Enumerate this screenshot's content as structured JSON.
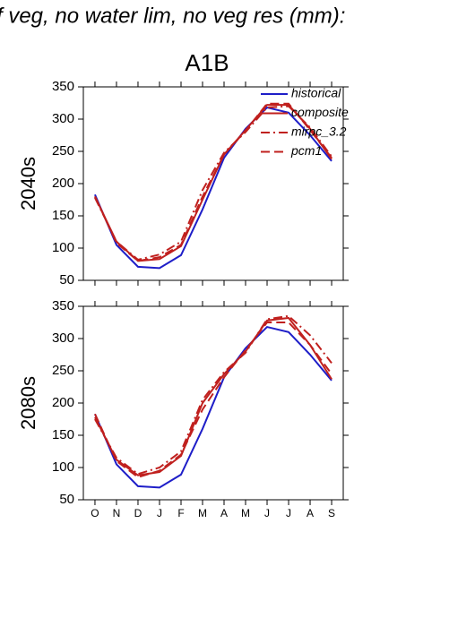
{
  "header": {
    "title": "f veg, no water lim, no veg res (mm):"
  },
  "chart_data": [
    {
      "type": "line",
      "title": "A1B",
      "ylabel": "2040s",
      "legend": "upper right",
      "categories": [
        null,
        null,
        null,
        null,
        null,
        null,
        null,
        null,
        null,
        null,
        null,
        null
      ],
      "ylim": [
        50,
        350
      ],
      "yticks": [
        50,
        100,
        150,
        200,
        250,
        300,
        350
      ],
      "series": [
        {
          "name": "historical",
          "color": "#1e1ec8",
          "dash": "solid",
          "values": [
            183,
            105,
            71,
            69,
            89,
            160,
            240,
            285,
            318,
            310,
            275,
            235
          ]
        },
        {
          "name": "composite",
          "color": "#c0201e",
          "dash": "solid",
          "values": [
            180,
            110,
            80,
            83,
            103,
            175,
            245,
            283,
            322,
            322,
            285,
            238
          ]
        },
        {
          "name": "mirpc_3.2",
          "color": "#c0201e",
          "dash": "dashdot",
          "values": [
            178,
            110,
            82,
            90,
            110,
            190,
            248,
            280,
            318,
            320,
            287,
            242
          ]
        },
        {
          "name": "pcm1",
          "color": "#c0201e",
          "dash": "dash",
          "values": [
            180,
            108,
            80,
            86,
            105,
            180,
            245,
            282,
            324,
            324,
            283,
            240
          ]
        }
      ]
    },
    {
      "type": "line",
      "ylabel": "2080s",
      "categories": [
        "O",
        "N",
        "D",
        "J",
        "F",
        "M",
        "A",
        "M",
        "J",
        "J",
        "A",
        "S"
      ],
      "ylim": [
        50,
        350
      ],
      "yticks": [
        50,
        100,
        150,
        200,
        250,
        300,
        350
      ],
      "series": [
        {
          "color": "#1e1ec8",
          "dash": "solid",
          "values": [
            183,
            105,
            71,
            69,
            89,
            160,
            240,
            285,
            318,
            310,
            275,
            235
          ]
        },
        {
          "color": "#c0201e",
          "dash": "solid",
          "values": [
            178,
            112,
            88,
            93,
            118,
            200,
            245,
            280,
            328,
            332,
            290,
            237
          ]
        },
        {
          "color": "#c0201e",
          "dash": "dashdot",
          "values": [
            175,
            115,
            90,
            100,
            125,
            205,
            248,
            278,
            330,
            335,
            305,
            262
          ]
        },
        {
          "color": "#c0201e",
          "dash": "dash",
          "values": [
            183,
            110,
            85,
            95,
            120,
            190,
            240,
            282,
            325,
            325,
            290,
            245
          ]
        }
      ]
    }
  ]
}
